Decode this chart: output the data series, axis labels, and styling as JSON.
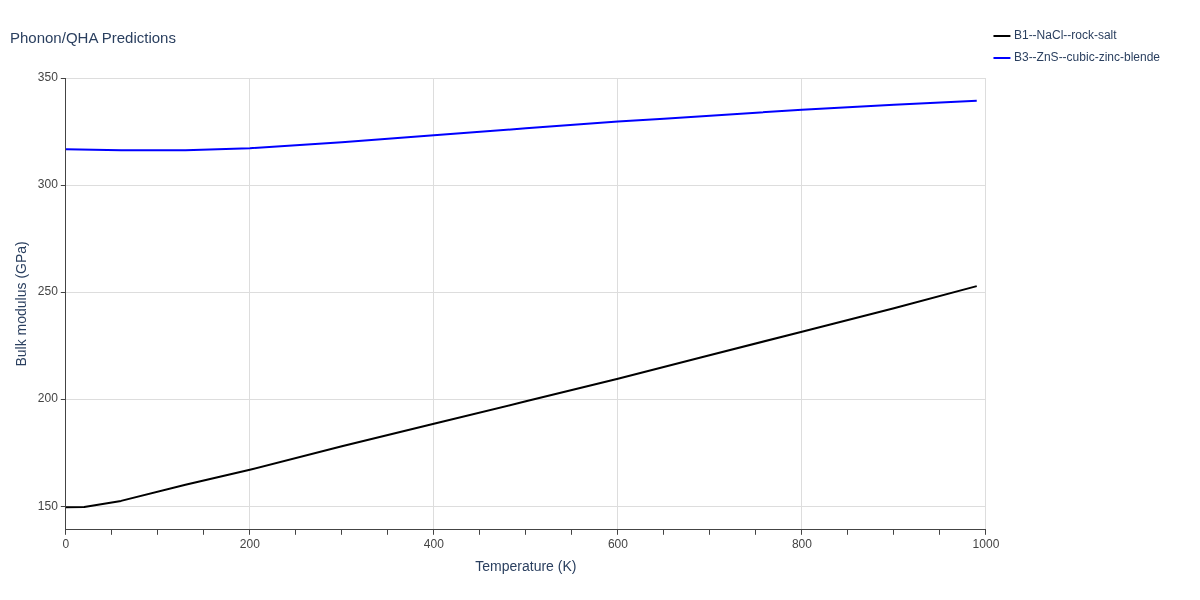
{
  "chart_data": {
    "type": "line",
    "title": "Phonon/QHA Predictions",
    "xlabel": "Temperature (K)",
    "ylabel": "Bulk modulus (GPa)",
    "xlim": [
      0,
      1000
    ],
    "ylim": [
      139,
      350
    ],
    "xticks": [
      0,
      {
        "value": 50,
        "label": null
      },
      200,
      {
        "value": 100,
        "label": null
      },
      {
        "value": 150,
        "label": null
      },
      {
        "value": 250,
        "label": null
      },
      {
        "value": 300,
        "label": null
      },
      {
        "value": 350,
        "label": null
      },
      400,
      {
        "value": 450,
        "label": null
      },
      {
        "value": 500,
        "label": null
      },
      {
        "value": 550,
        "label": null
      },
      600,
      {
        "value": 650,
        "label": null
      },
      {
        "value": 700,
        "label": null
      },
      {
        "value": 750,
        "label": null
      },
      800,
      {
        "value": 850,
        "label": null
      },
      {
        "value": 900,
        "label": null
      },
      {
        "value": 950,
        "label": null
      },
      1000
    ],
    "yticks": [
      150,
      200,
      250,
      300,
      350
    ],
    "grid": true,
    "legend": "top right",
    "marker": "none",
    "line_style": "solid",
    "series": [
      {
        "name": "B1--NaCl--rock-salt",
        "color": "#000000",
        "x": [
          0,
          20,
          60,
          130,
          200,
          300,
          400,
          500,
          600,
          690,
          800,
          900,
          990
        ],
        "values": [
          149.5,
          149.6,
          152.5,
          160,
          167,
          178,
          188.5,
          199,
          209.5,
          219.5,
          231.5,
          242.5,
          252.8
        ]
      },
      {
        "name": "B3--ZnS--cubic-zinc-blende",
        "color": "#0000ff",
        "x": [
          0,
          60,
          130,
          200,
          300,
          400,
          500,
          600,
          650,
          800,
          900,
          990
        ],
        "values": [
          316.7,
          316.2,
          316.2,
          317.2,
          320,
          323.3,
          326.5,
          329.7,
          331,
          335.2,
          337.5,
          339.4
        ]
      }
    ]
  }
}
